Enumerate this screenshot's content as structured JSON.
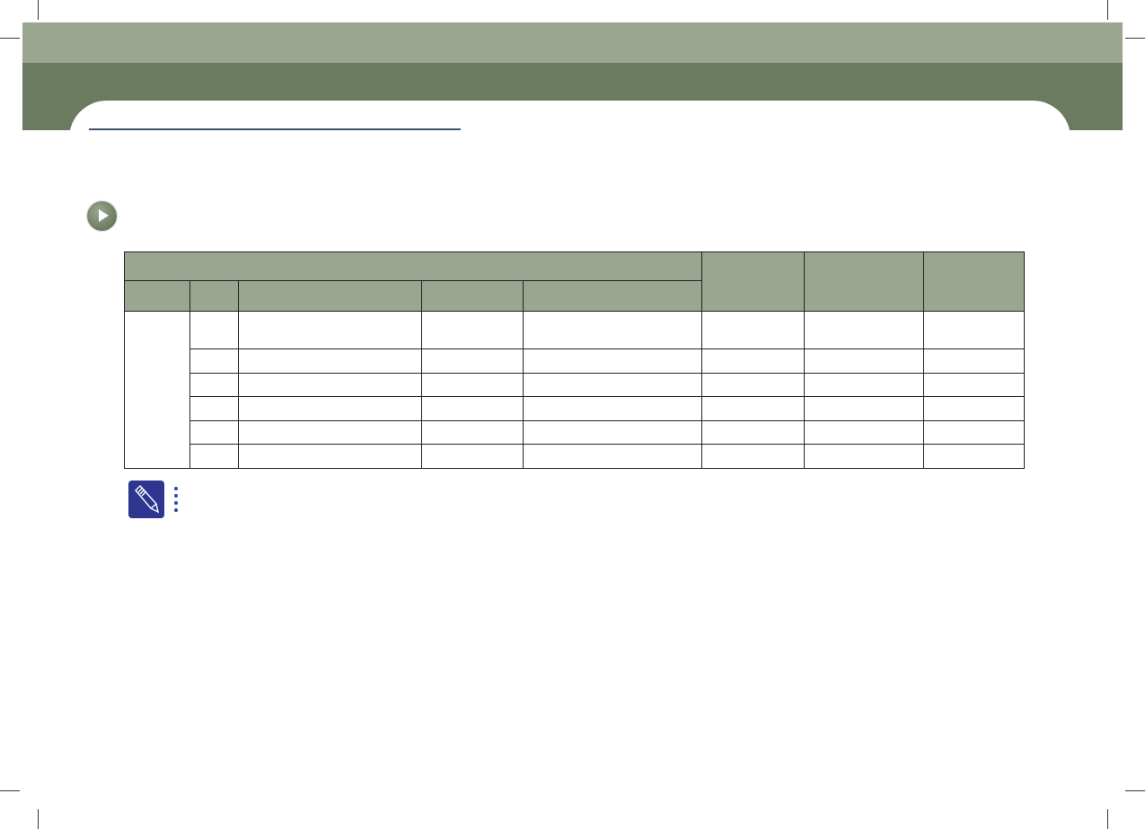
{
  "colors": {
    "header_light": "#9ba690",
    "header_dark": "#6b7b5f",
    "title_rule": "#3d5470",
    "table_header": "#9ba690",
    "note_icon": "#2e3690"
  },
  "icons": {
    "section_bullet": "play-circle-icon",
    "note": "pencil-note-icon"
  }
}
